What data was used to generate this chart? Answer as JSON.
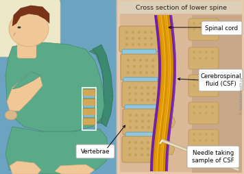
{
  "fig_w": 3.56,
  "fig_h": 2.54,
  "dpi": 100,
  "bg_blue": "#6ba3c0",
  "pillow_color": "#ede8c8",
  "skin_color": "#f0c898",
  "hair_color": "#7a3318",
  "shirt_color": "#5aaa8a",
  "pants_color": "#5aaa8a",
  "hand_color": "#d8b888",
  "spine_box_color": "#ffffff",
  "mini_vert_color": "#d4b070",
  "mini_disc_color": "#90bcd8",
  "right_panel_bg": "#e8c8a8",
  "right_panel_border": "#b0b0b0",
  "title_bg": "#ddd0b8",
  "title_text": "Cross section of lower spine",
  "title_fontsize": 6.8,
  "vert_color": "#d4b070",
  "vert_outline": "#b89050",
  "vert_spot": "#c09848",
  "disc_color": "#90c8e0",
  "disc_outline": "#60a0c0",
  "csf_outer_color": "#7020a0",
  "csf_sheen_color": "#9040b8",
  "nerve_colors": [
    "#e8a010",
    "#f0b820",
    "#d89000",
    "#e8a818",
    "#f0b020",
    "#cc8800"
  ],
  "nerve_center_color": "#e8a010",
  "needle_color": "#d8c8a0",
  "needle_shine": "#f0e8d0",
  "right_tissue": "#d8b898",
  "right_vert_color": "#d4b070",
  "label_bg": "#ffffff",
  "label_edge": "#aaaaaa",
  "label_fontsize": 6.2,
  "watermark": "© AboutKidsHealth.ca",
  "vertebrae_label": "Vertebrae",
  "spinal_cord_label": "Spinal cord",
  "csf_label": "Cerebrospinal\nfluid (CSF)",
  "needle_label": "Needle taking\nsample of CSF"
}
